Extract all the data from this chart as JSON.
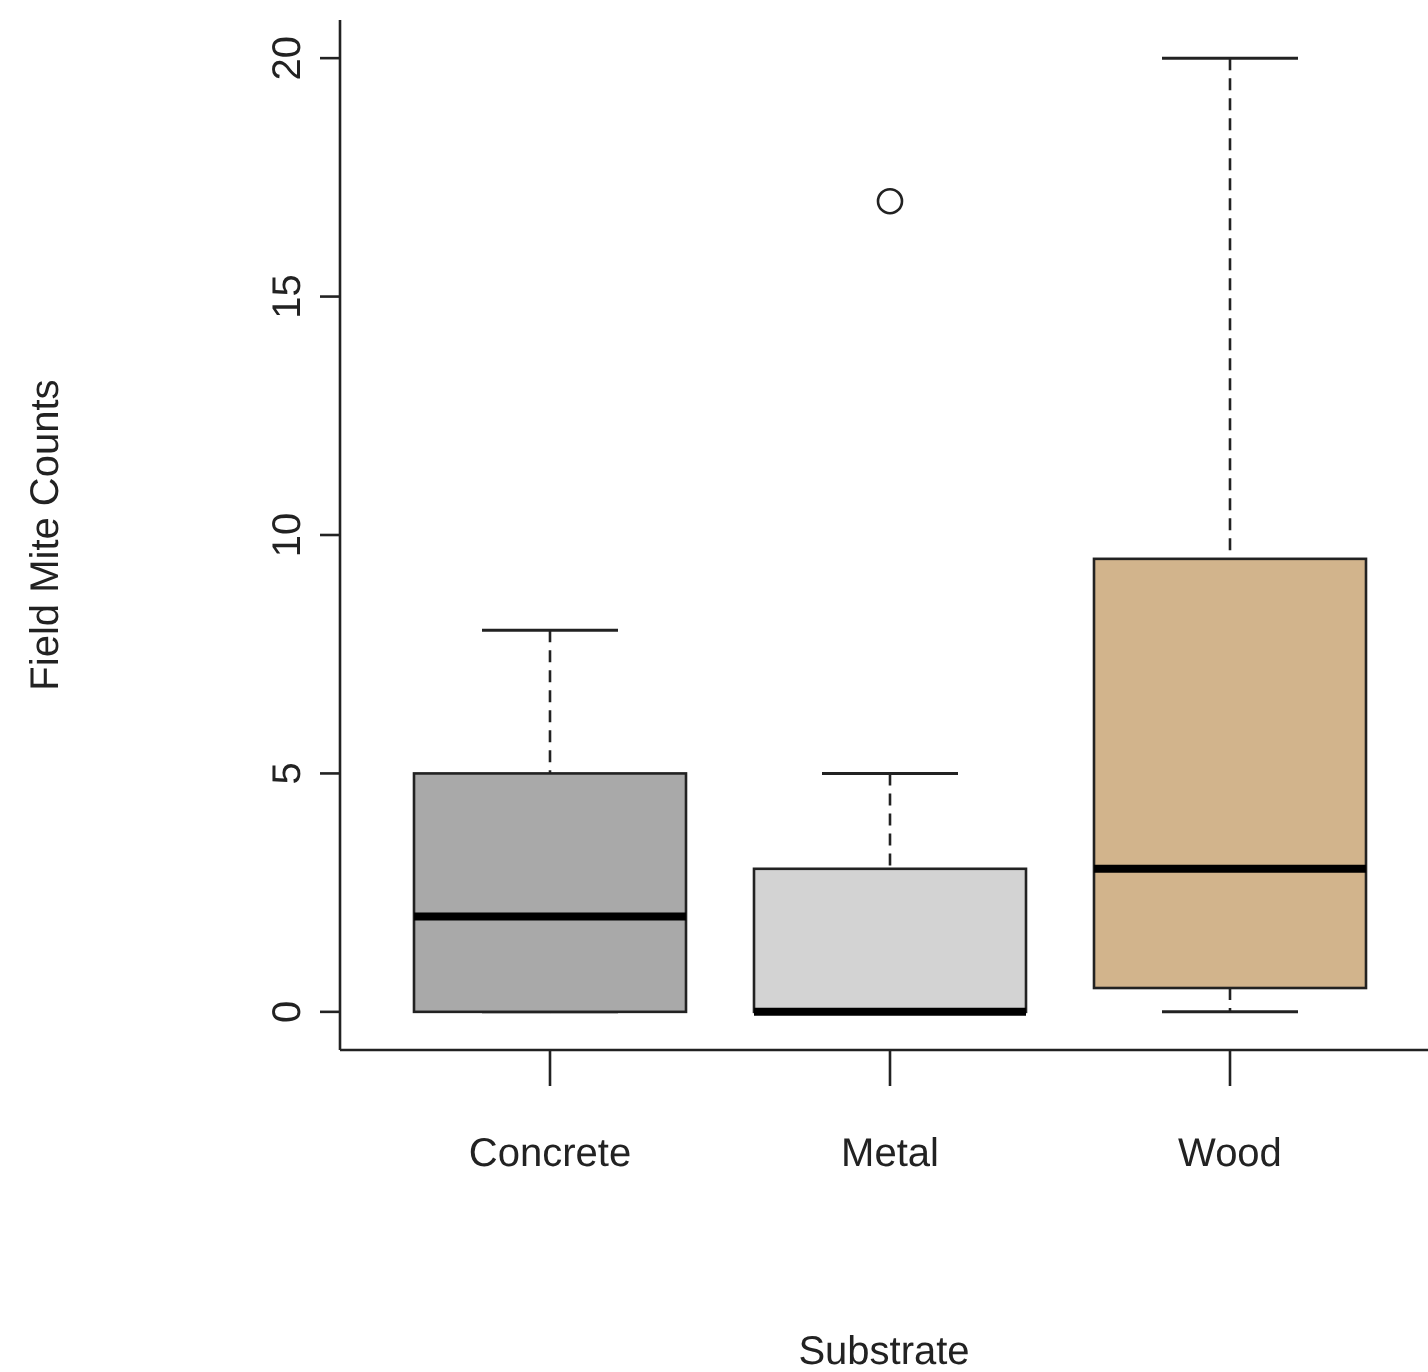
{
  "chart_data": {
    "type": "box",
    "xlabel": "Substrate",
    "ylabel": "Field Mite Counts",
    "categories": [
      "Concrete",
      "Metal",
      "Wood"
    ],
    "colors": [
      "#a9a9a9",
      "#d3d3d3",
      "#d2b48c"
    ],
    "boxes": [
      {
        "low": 0,
        "q1": 0,
        "median": 2,
        "q3": 5,
        "high": 8
      },
      {
        "low": 0,
        "q1": 0,
        "median": 0,
        "q3": 3,
        "high": 5,
        "outliers": [
          17
        ]
      },
      {
        "low": 0,
        "q1": 0.5,
        "median": 3,
        "q3": 9.5,
        "high": 20
      }
    ],
    "ylim": [
      -0.8,
      20.8
    ],
    "yticks": [
      0,
      5,
      10,
      15,
      20
    ]
  }
}
